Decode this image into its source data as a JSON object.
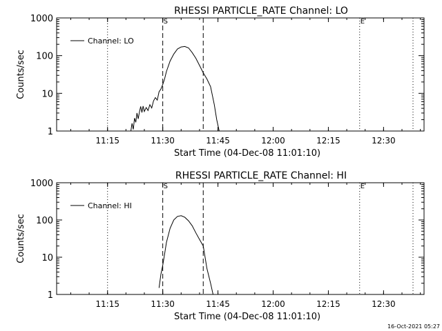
{
  "footer_timestamp": "16-Oct-2021 05:27",
  "colors": {
    "background": "#ffffff",
    "foreground": "#000000"
  },
  "chart_data": [
    {
      "type": "line",
      "title": "RHESSI PARTICLE_RATE Channel: LO",
      "xlabel": "Start Time (04-Dec-08 11:01:10)",
      "ylabel": "Counts/sec",
      "yscale": "log",
      "xlim": [
        "11:01:10",
        "12:41:00"
      ],
      "ylim": [
        1,
        1000
      ],
      "x_ticks": [
        "11:15",
        "11:30",
        "11:45",
        "12:00",
        "12:15",
        "12:30"
      ],
      "y_ticks": [
        "1",
        "10",
        "100",
        "1000"
      ],
      "legend": {
        "position": "upper-left",
        "entries": [
          "Channel: LO"
        ]
      },
      "grid": false,
      "series": [
        {
          "name": "Channel: LO",
          "x": [
            "11:21:20",
            "11:21:40",
            "11:22:00",
            "11:22:20",
            "11:22:40",
            "11:23:00",
            "11:23:20",
            "11:23:40",
            "11:24:00",
            "11:24:20",
            "11:24:40",
            "11:25:00",
            "11:25:30",
            "11:26:00",
            "11:26:30",
            "11:27:00",
            "11:27:30",
            "11:28:00",
            "11:28:30",
            "11:29:00",
            "11:29:30",
            "11:30:00",
            "11:30:30",
            "11:31:00",
            "11:32:00",
            "11:33:00",
            "11:34:00",
            "11:35:00",
            "11:36:00",
            "11:37:00",
            "11:38:00",
            "11:39:00",
            "11:40:00",
            "11:41:00",
            "11:42:00",
            "11:43:00",
            "11:44:00",
            "11:44:40",
            "11:45:20"
          ],
          "y": [
            1,
            1.6,
            1.1,
            2.2,
            1.7,
            3,
            2.1,
            3.2,
            4.5,
            3.1,
            4.6,
            3.3,
            4.2,
            3.5,
            5,
            4.1,
            6.3,
            7.7,
            6.6,
            11,
            13,
            17,
            24,
            38,
            72,
            110,
            150,
            170,
            175,
            160,
            120,
            85,
            55,
            35,
            24,
            15,
            5,
            2,
            1
          ]
        }
      ],
      "markers": [
        {
          "x": "11:30:00",
          "label": "S",
          "style": "dashed"
        },
        {
          "x": "11:41:00",
          "label": "",
          "style": "dashed"
        },
        {
          "x": "11:15:00",
          "label": "",
          "style": "dotted"
        },
        {
          "x": "12:23:30",
          "label": "E",
          "style": "dotted"
        },
        {
          "x": "12:38:00",
          "label": "",
          "style": "dotted"
        }
      ]
    },
    {
      "type": "line",
      "title": "RHESSI PARTICLE_RATE Channel: HI",
      "xlabel": "Start Time (04-Dec-08 11:01:10)",
      "ylabel": "Counts/sec",
      "yscale": "log",
      "xlim": [
        "11:01:10",
        "12:41:00"
      ],
      "ylim": [
        1,
        1000
      ],
      "x_ticks": [
        "11:15",
        "11:30",
        "11:45",
        "12:00",
        "12:15",
        "12:30"
      ],
      "y_ticks": [
        "1",
        "10",
        "100",
        "1000"
      ],
      "legend": {
        "position": "upper-left",
        "entries": [
          "Channel: HI"
        ]
      },
      "grid": false,
      "series": [
        {
          "name": "Channel: HI",
          "x": [
            "11:29:00",
            "11:29:30",
            "11:30:00",
            "11:30:30",
            "11:31:00",
            "11:32:00",
            "11:33:00",
            "11:34:00",
            "11:35:00",
            "11:36:00",
            "11:37:00",
            "11:38:00",
            "11:39:00",
            "11:40:00",
            "11:41:00",
            "11:42:00",
            "11:43:00",
            "11:43:40"
          ],
          "y": [
            1.5,
            3.5,
            6,
            12,
            25,
            60,
            100,
            125,
            130,
            118,
            95,
            70,
            45,
            30,
            20,
            5,
            2,
            1
          ]
        }
      ],
      "markers": [
        {
          "x": "11:30:00",
          "label": "S",
          "style": "dashed"
        },
        {
          "x": "11:41:00",
          "label": "",
          "style": "dashed"
        },
        {
          "x": "11:15:00",
          "label": "",
          "style": "dotted"
        },
        {
          "x": "12:23:30",
          "label": "E",
          "style": "dotted"
        },
        {
          "x": "12:38:00",
          "label": "",
          "style": "dotted"
        }
      ]
    }
  ]
}
